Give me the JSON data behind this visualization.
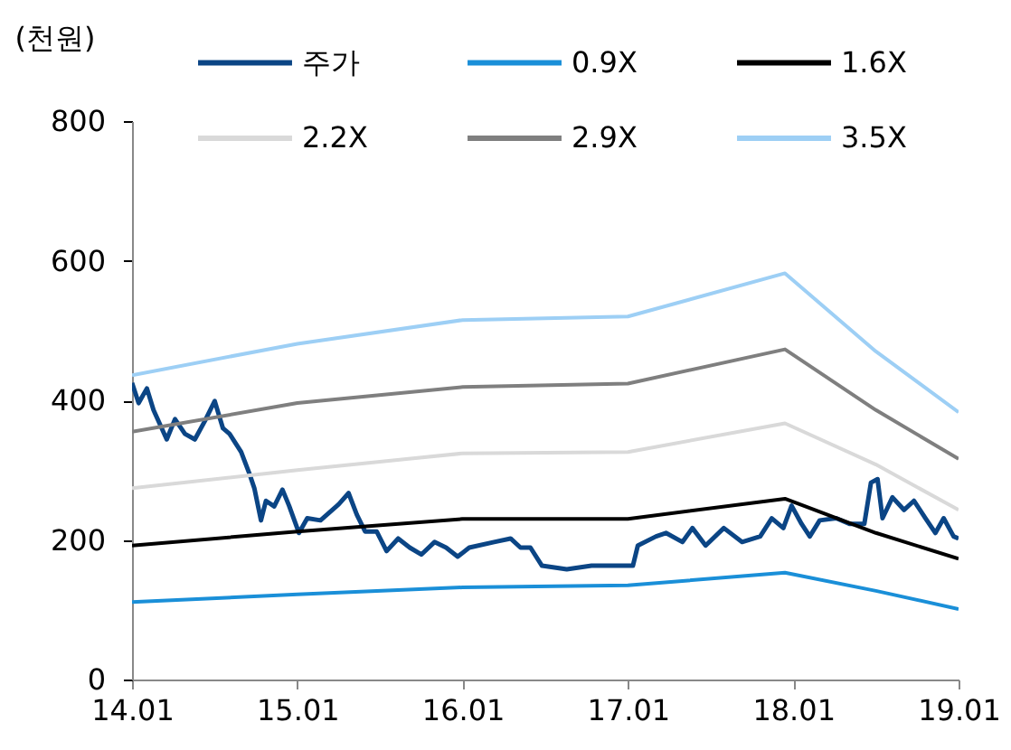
{
  "chart_data": {
    "type": "line",
    "ylabel": "(천원)",
    "xlim": [
      14.01,
      19.01
    ],
    "xticks": [
      14.01,
      15.01,
      16.01,
      17.01,
      18.01,
      19.01
    ],
    "ylim": [
      0,
      800
    ],
    "yticks": [
      0,
      200,
      400,
      600,
      800
    ],
    "grid": false,
    "legend": "top",
    "line_style": "solid",
    "series": [
      {
        "name": "주가",
        "color": "#0b4585",
        "x": [
          14.01,
          14.05,
          14.1,
          14.14,
          14.22,
          14.27,
          14.33,
          14.39,
          14.45,
          14.51,
          14.56,
          14.6,
          14.67,
          14.72,
          14.75,
          14.79,
          14.82,
          14.87,
          14.92,
          14.96,
          15.02,
          15.07,
          15.15,
          15.26,
          15.32,
          15.37,
          15.42,
          15.49,
          15.55,
          15.62,
          15.69,
          15.76,
          15.84,
          15.91,
          15.98,
          16.05,
          16.2,
          16.3,
          16.36,
          16.42,
          16.49,
          16.64,
          16.79,
          16.93,
          17.04,
          17.07,
          17.18,
          17.24,
          17.34,
          17.4,
          17.48,
          17.59,
          17.7,
          17.81,
          17.88,
          17.95,
          18.0,
          18.06,
          18.11,
          18.17,
          18.27,
          18.35,
          18.44,
          18.48,
          18.52,
          18.55,
          18.61,
          18.68,
          18.74,
          18.81,
          18.87,
          18.92,
          18.98,
          19.01
        ],
        "values": [
          425,
          396,
          417,
          386,
          344,
          373,
          352,
          344,
          370,
          399,
          360,
          352,
          326,
          295,
          274,
          228,
          256,
          248,
          272,
          249,
          210,
          231,
          228,
          251,
          267,
          236,
          212,
          212,
          184,
          202,
          189,
          179,
          197,
          189,
          176,
          189,
          197,
          202,
          189,
          189,
          163,
          158,
          163,
          163,
          163,
          192,
          205,
          210,
          197,
          217,
          192,
          217,
          197,
          205,
          231,
          217,
          249,
          223,
          205,
          228,
          231,
          223,
          223,
          282,
          287,
          231,
          261,
          243,
          256,
          231,
          210,
          231,
          205,
          202
        ]
      },
      {
        "name": "0.9X",
        "color": "#1a8fd8",
        "x": [
          14.01,
          15.01,
          16.01,
          17.01,
          17.96,
          18.51,
          19.01
        ],
        "values": [
          111,
          122,
          132,
          135,
          153,
          127,
          101
        ]
      },
      {
        "name": "1.6X",
        "color": "#000000",
        "x": [
          14.01,
          15.01,
          16.01,
          17.01,
          17.96,
          18.51,
          19.01
        ],
        "values": [
          192,
          212,
          230,
          230,
          259,
          210,
          173
        ]
      },
      {
        "name": "2.2X",
        "color": "#d9d9d9",
        "x": [
          14.01,
          15.01,
          16.01,
          17.01,
          17.96,
          18.51,
          19.01
        ],
        "values": [
          274,
          300,
          324,
          326,
          367,
          308,
          243
        ]
      },
      {
        "name": "2.9X",
        "color": "#7f7f7f",
        "x": [
          14.01,
          15.01,
          16.01,
          17.01,
          17.96,
          18.51,
          19.01
        ],
        "values": [
          355,
          396,
          419,
          424,
          473,
          386,
          316
        ]
      },
      {
        "name": "3.5X",
        "color": "#9dcff5",
        "x": [
          14.01,
          15.01,
          16.01,
          17.01,
          17.96,
          18.51,
          19.01
        ],
        "values": [
          436,
          481,
          515,
          520,
          582,
          470,
          383
        ]
      }
    ]
  }
}
